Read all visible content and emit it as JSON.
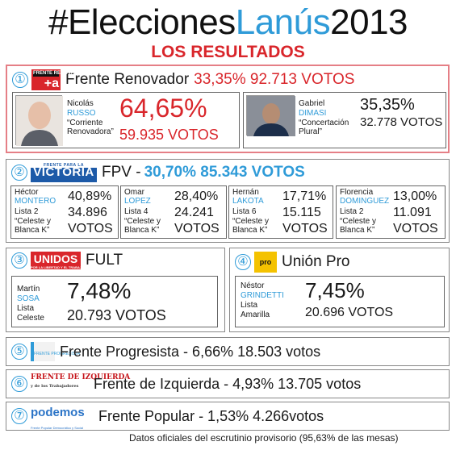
{
  "header": {
    "title_part1": "#Elecciones",
    "title_part2": "Lanús",
    "title_part3": "2013",
    "subtitle": "LOS RESULTADOS"
  },
  "parties": {
    "fr": {
      "number": "①",
      "logo_top": "FRENTE RENOVADOR",
      "logo_mark": "+a",
      "name": "Frente Renovador",
      "summary": "33,35% 92.713 VOTOS",
      "candidates": [
        {
          "first": "Nicolás",
          "last": "RUSSO",
          "list": "“Corriente Renovadora”",
          "pct": "64,65%",
          "votes": "59.935 VOTOS"
        },
        {
          "first": "Gabriel",
          "last": "DIMASI",
          "list": "“Concertación Plural”",
          "pct": "35,35%",
          "votes": "32.778 VOTOS"
        }
      ]
    },
    "fpv": {
      "number": "②",
      "logo_top": "FRENTE PARA LA",
      "logo_mark": "VICTORIA",
      "name": "FPV - ",
      "summary": "30,70% 85.343 VOTOS",
      "candidates": [
        {
          "first": "Héctor",
          "last": "MONTERO",
          "list_no": "Lista 2",
          "list_name": "“Celeste y Blanca K”",
          "pct": "40,89%",
          "votes_num": "34.896",
          "votes_word": "VOTOS"
        },
        {
          "first": "Omar",
          "last": "LOPEZ",
          "list_no": "Lista 4",
          "list_name": "“Celeste y Blanca K”",
          "pct": "28,40%",
          "votes_num": "24.241",
          "votes_word": "VOTOS"
        },
        {
          "first": "Hernán",
          "last": "LAKOTA",
          "list_no": "Lista 6",
          "list_name": "“Celeste y Blanca K”",
          "pct": "17,71%",
          "votes_num": "15.115",
          "votes_word": "VOTOS"
        },
        {
          "first": "Florencia",
          "last": "DOMINGUEZ",
          "list_no": "Lista 2",
          "list_name": "“Celeste y Blanca K”",
          "pct": "13,00%",
          "votes_num": "11.091",
          "votes_word": "VOTOS"
        }
      ]
    },
    "fult": {
      "number": "③",
      "logo_mark": "UNIDOS",
      "logo_sub": "POR LA LIBERTAD Y EL TRABAJO",
      "name": "FULT",
      "candidate": {
        "first": "Martín",
        "last": "SOSA",
        "list_a": "Lista",
        "list_b": "Celeste",
        "pct": "7,48%",
        "votes": "20.793 VOTOS"
      }
    },
    "pro": {
      "number": "④",
      "logo_mark": "pro",
      "name": "Unión Pro",
      "candidate": {
        "first": "Néstor",
        "last": "GRINDETTI",
        "list_a": "Lista",
        "list_b": "Amarilla",
        "pct": "7,45%",
        "votes": "20.696 VOTOS"
      }
    },
    "fp": {
      "number": "⑤",
      "logo_mark": "FRENTE PROGRESISTA",
      "line": "Frente Progresista - 6,66% 18.503 votos"
    },
    "fi": {
      "number": "⑥",
      "logo_mark": "FRENTE DE IZQUIERDA",
      "logo_sub": "y de los Trabajadores",
      "line": "Frente de Izquierda - 4,93% 13.705 votos"
    },
    "fpop": {
      "number": "⑦",
      "logo_mark": "podemos",
      "logo_sub": "Frente Popular Democrático y Social",
      "line": "Frente Popular - 1,53% 4.266votos"
    }
  },
  "footer": "Datos oficiales del escrutinio provisorio (95,63% de las mesas)",
  "colors": {
    "red": "#d9262b",
    "blue": "#2f9bd8",
    "border_red": "#e57f86"
  }
}
